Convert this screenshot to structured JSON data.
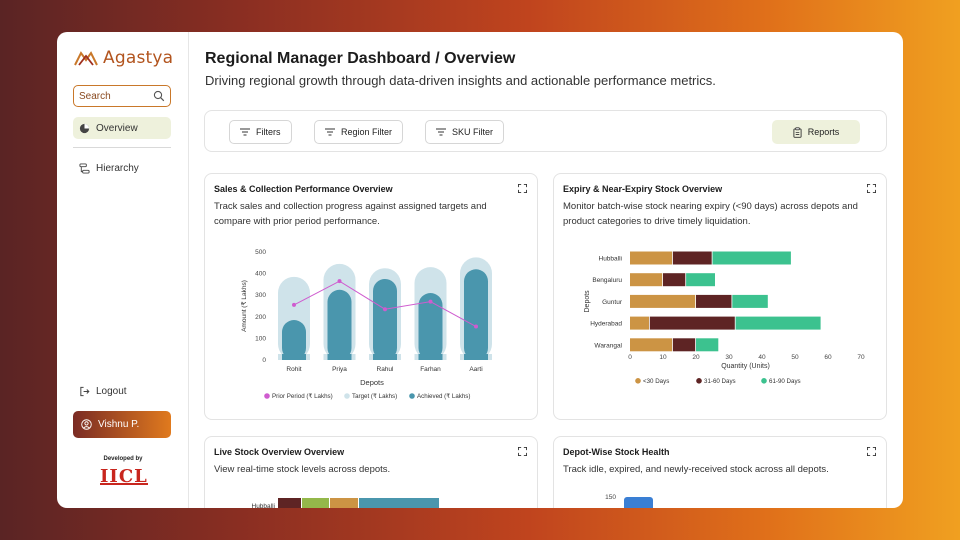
{
  "app": {
    "name": "Agastya"
  },
  "sidebar": {
    "search_label": "Search",
    "items": [
      {
        "label": "Overview",
        "icon": "pie-icon",
        "active": true
      },
      {
        "label": "Hierarchy",
        "icon": "hierarchy-icon",
        "active": false
      }
    ],
    "logout_label": "Logout",
    "user_name": "Vishnu P.",
    "developed_by": "Developed by",
    "developer_logo": "IICL"
  },
  "header": {
    "title": "Regional Manager Dashboard / Overview",
    "subtitle": "Driving regional growth through data-driven insights and actionable performance metrics."
  },
  "filters": {
    "filters": "Filters",
    "region": "Region Filter",
    "sku": "SKU Filter",
    "reports": "Reports"
  },
  "colors": {
    "brand": "#b2541e",
    "accent_bg": "#eef1dc",
    "target_bar": "#cfe3ea",
    "achieved_bar": "#4a96ad",
    "prior_line": "#cf5ccf",
    "lt30": "#cc9444",
    "d31_60": "#5e2424",
    "d61_90": "#3cc28f"
  },
  "cards": {
    "sales": {
      "title": "Sales & Collection Performance Overview",
      "description": "Track sales and collection progress against assigned targets and compare with prior period performance."
    },
    "expiry": {
      "title": "Expiry & Near-Expiry Stock Overview",
      "description": "Monitor batch-wise stock nearing expiry (<90 days) across depots and product categories to drive timely liquidation."
    },
    "live": {
      "title": "Live Stock Overview Overview",
      "description": "View real-time stock levels across depots."
    },
    "health": {
      "title": "Depot-Wise Stock Health",
      "description": "Track idle, expired, and newly-received stock across all depots."
    }
  },
  "chart_data": [
    {
      "type": "bar",
      "categories": [
        "Rohit",
        "Priya",
        "Rahul",
        "Farhan",
        "Aarti"
      ],
      "series": [
        {
          "name": "Prior Period (₹ Lakhs)",
          "kind": "line",
          "values": [
            255,
            365,
            235,
            270,
            155
          ]
        },
        {
          "name": "Target (₹ Lakhs)",
          "values": [
            385,
            445,
            425,
            430,
            475
          ]
        },
        {
          "name": "Achieved (₹ Lakhs)",
          "values": [
            185,
            325,
            375,
            310,
            420
          ]
        }
      ],
      "xlabel": "Depots",
      "ylabel": "Amount (₹ Lakhs)",
      "yticks": [
        "0",
        "100",
        "200",
        "300",
        "400",
        "500"
      ],
      "ylim": [
        0,
        500
      ],
      "legend": "bottom"
    },
    {
      "type": "bar",
      "orientation": "horizontal",
      "stacked": true,
      "categories": [
        "Hubballi",
        "Bengaluru",
        "Guntur",
        "Hyderabad",
        "Warangal"
      ],
      "series": [
        {
          "name": "<30 Days",
          "values": [
            13,
            10,
            20,
            6,
            13
          ]
        },
        {
          "name": "31-60 Days",
          "values": [
            12,
            7,
            11,
            26,
            7
          ]
        },
        {
          "name": "61-90 Days",
          "values": [
            24,
            9,
            11,
            26,
            7
          ]
        }
      ],
      "xlabel": "Quantity (Units)",
      "ylabel": "Depots",
      "xticks": [
        "0",
        "10",
        "20",
        "30",
        "40",
        "50",
        "60",
        "70"
      ],
      "xlim": [
        0,
        70
      ],
      "legend": "bottom"
    },
    {
      "type": "bar",
      "orientation": "horizontal",
      "stacked": true,
      "categories": [
        "Hubballi"
      ],
      "partial": true
    },
    {
      "type": "bar",
      "yticks": [
        "150"
      ],
      "partial": true
    }
  ]
}
